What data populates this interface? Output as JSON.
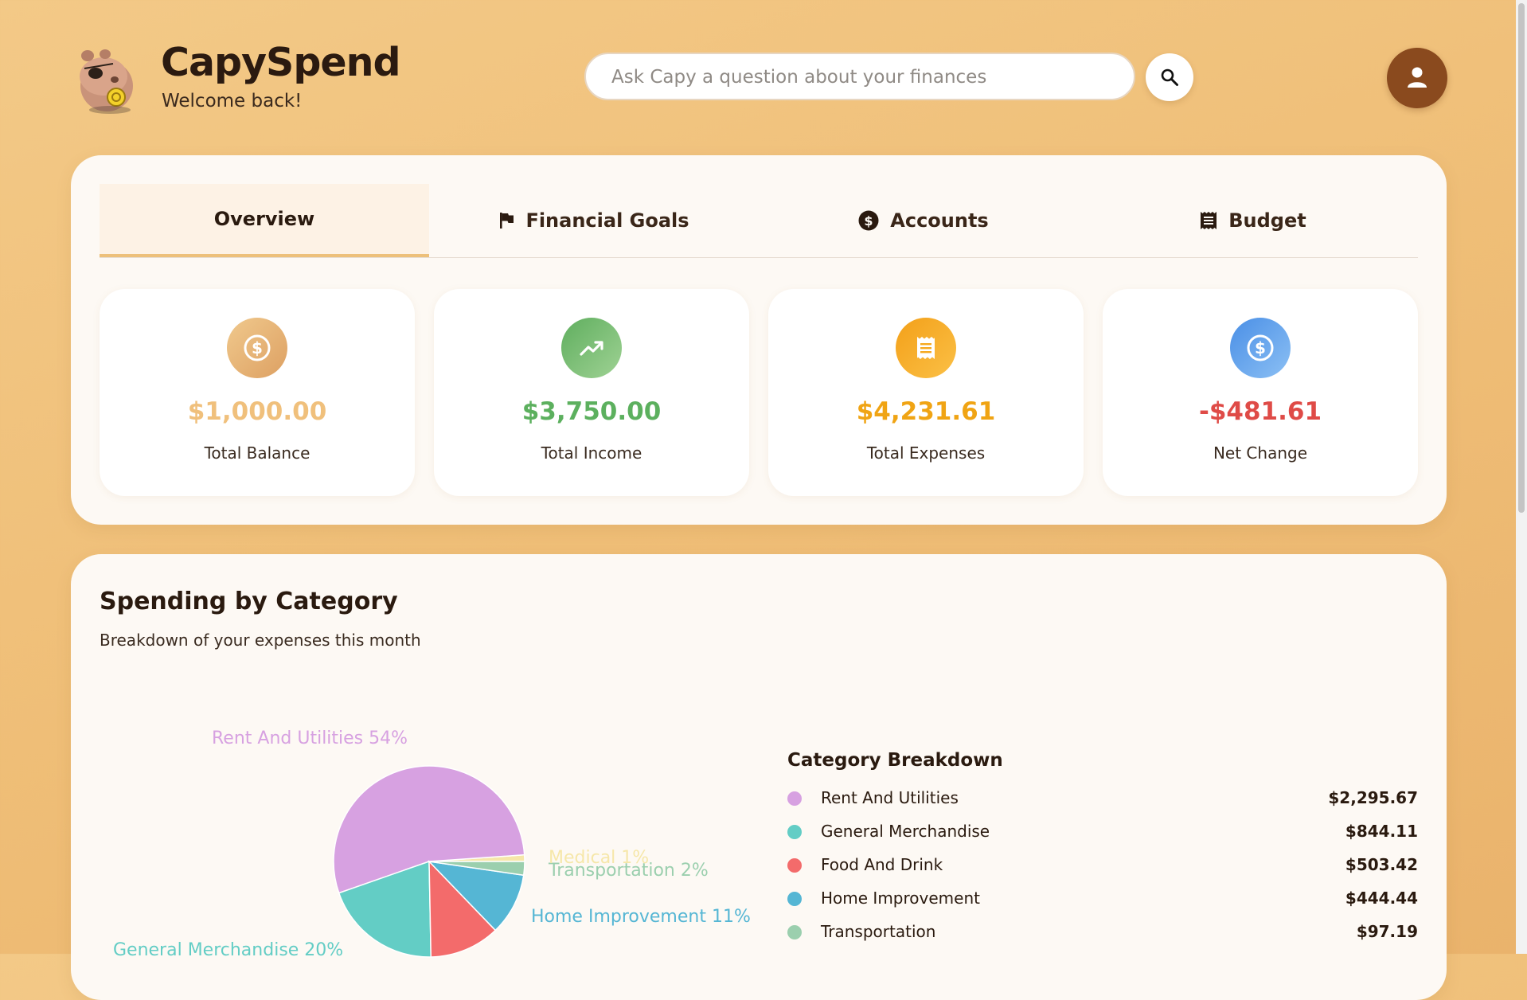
{
  "app": {
    "name": "CapySpend",
    "welcome": "Welcome back!"
  },
  "search": {
    "placeholder": "Ask Capy a question about your finances",
    "value": ""
  },
  "icons": {
    "logo": "capybara-mascot-icon",
    "search": "search-icon",
    "avatar": "user-icon"
  },
  "tabs": [
    {
      "label": "Overview",
      "icon": "",
      "active": true
    },
    {
      "label": "Financial Goals",
      "icon": "flag-icon",
      "active": false
    },
    {
      "label": "Accounts",
      "icon": "dollar-circle-icon",
      "active": false
    },
    {
      "label": "Budget",
      "icon": "receipt-icon",
      "active": false
    }
  ],
  "summary": [
    {
      "value": "$1,000.00",
      "label": "Total Balance",
      "icon": "dollar-circle-icon",
      "color": "#f0c07c",
      "icon_bg": "#e3a865"
    },
    {
      "value": "$3,750.00",
      "label": "Total Income",
      "icon": "trending-up-icon",
      "color": "#5cb05e",
      "icon_bg": "#76bb72"
    },
    {
      "value": "$4,231.61",
      "label": "Total Expenses",
      "icon": "receipt-icon",
      "color": "#f0a414",
      "icon_bg": "#f6a91f"
    },
    {
      "value": "-$481.61",
      "label": "Net Change",
      "icon": "dollar-circle-icon",
      "color": "#df4b47",
      "icon_bg": "#5e9be9"
    }
  ],
  "spending": {
    "title": "Spending by Category",
    "subtitle": "Breakdown of your expenses this month",
    "breakdown_title": "Category Breakdown"
  },
  "chart_data": {
    "type": "pie",
    "categories": [
      "Rent And Utilities",
      "General Merchandise",
      "Food And Drink",
      "Home Improvement",
      "Transportation",
      "Medical"
    ],
    "values": [
      2295.67,
      844.11,
      503.42,
      444.44,
      97.19,
      46.78
    ],
    "amounts": [
      "$2,295.67",
      "$844.11",
      "$503.42",
      "$444.44",
      "$97.19",
      ""
    ],
    "percent_labels": [
      "Rent And Utilities 54%",
      "General Merchandise 20%",
      "Food And Drink",
      "Home Improvement 11%",
      "Transportation 2%",
      "Medical 1%"
    ],
    "colors": [
      "#d7a1e1",
      "#63cdc5",
      "#f36b6b",
      "#55b6d4",
      "#9bcfae",
      "#f6e7a9"
    ],
    "legend_placement": "right"
  }
}
